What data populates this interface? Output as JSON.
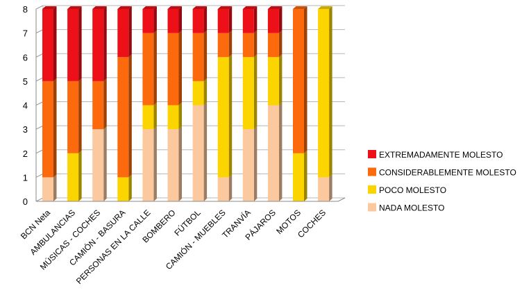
{
  "chart_data": {
    "type": "bar",
    "stacked": true,
    "title": "",
    "xlabel": "",
    "ylabel": "",
    "ylim": [
      0,
      8
    ],
    "yticks": [
      "0",
      "1",
      "2",
      "3",
      "4",
      "5",
      "6",
      "7",
      "8"
    ],
    "grid": true,
    "legend_position": "right",
    "categories": [
      "BCN Neta",
      "AMBULANCIAS",
      "MÚSICAS - COCHES",
      "CAMIÓN - BASURA",
      "PERSONAS EN LA CALLE",
      "BOMBERO",
      "FÚTBOL",
      "CAMIÓN - MUEBLES",
      "TRANVÍA",
      "PÁJAROS",
      "MOTOS",
      "COCHES"
    ],
    "series": [
      {
        "name": "NADA MOLESTO",
        "color": "#FCC99F",
        "values": [
          1,
          0,
          3,
          0,
          3,
          3,
          4,
          1,
          3,
          4,
          0,
          1
        ]
      },
      {
        "name": "POCO MOLESTO",
        "color": "#FCD400",
        "values": [
          0,
          2,
          0,
          1,
          1,
          1,
          1,
          5,
          3,
          2,
          2,
          7
        ]
      },
      {
        "name": "CONSIDERABLEMENTE MOLESTO",
        "color": "#FC6A0D",
        "values": [
          4,
          3,
          2,
          5,
          3,
          3,
          2,
          1,
          1,
          1,
          6,
          0
        ]
      },
      {
        "name": "EXTREMADAMENTE MOLESTO",
        "color": "#EE1018",
        "values": [
          3,
          3,
          3,
          2,
          1,
          1,
          1,
          1,
          1,
          1,
          0,
          0
        ]
      }
    ],
    "legend_order": [
      "EXTREMADAMENTE MOLESTO",
      "CONSIDERABLEMENTE MOLESTO",
      "POCO MOLESTO",
      "NADA MOLESTO"
    ]
  }
}
